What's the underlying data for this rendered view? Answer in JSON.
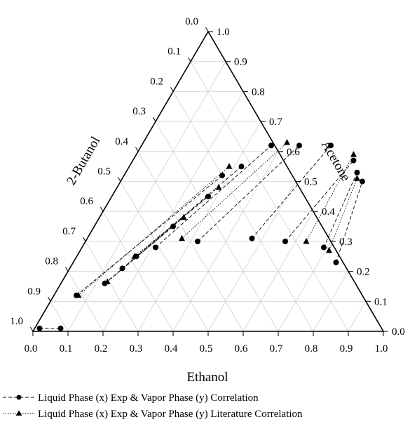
{
  "chart_data": {
    "type": "ternary",
    "axes": {
      "bottom": {
        "label": "Ethanol",
        "ticks": [
          "0.0",
          "0.1",
          "0.2",
          "0.3",
          "0.4",
          "0.5",
          "0.6",
          "0.7",
          "0.8",
          "0.9",
          "1.0"
        ]
      },
      "right": {
        "label": "Acetone",
        "ticks": [
          "0.0",
          "0.1",
          "0.2",
          "0.3",
          "0.4",
          "0.5",
          "0.6",
          "0.7",
          "0.8",
          "0.9",
          "1.0"
        ]
      },
      "left": {
        "label": "2-Butanol",
        "ticks": [
          "0.0",
          "0.1",
          "0.2",
          "0.3",
          "0.4",
          "0.5",
          "0.6",
          "0.7",
          "0.8",
          "0.9",
          "1.0"
        ]
      }
    },
    "grid": true,
    "legend_position": "bottom",
    "series": [
      {
        "name": "Liquid Phase (x) Exp & Vapor Phase (y) Correlation",
        "marker": "circle",
        "linestyle": "dashed",
        "tie_lines": [
          [
            {
              "ethanol": 0.014,
              "acetone": 0.01
            },
            {
              "ethanol": 0.074,
              "acetone": 0.01
            }
          ],
          [
            {
              "ethanol": 0.064,
              "acetone": 0.12
            },
            {
              "ethanol": 0.28,
              "acetone": 0.52
            }
          ],
          [
            {
              "ethanol": 0.125,
              "acetone": 0.16
            },
            {
              "ethanol": 0.225,
              "acetone": 0.35
            }
          ],
          [
            {
              "ethanol": 0.15,
              "acetone": 0.21
            },
            {
              "ethanol": 0.275,
              "acetone": 0.45
            }
          ],
          [
            {
              "ethanol": 0.17,
              "acetone": 0.25
            },
            {
              "ethanol": 0.32,
              "acetone": 0.55
            }
          ],
          [
            {
              "ethanol": 0.21,
              "acetone": 0.28
            },
            {
              "ethanol": 0.37,
              "acetone": 0.62
            }
          ],
          [
            {
              "ethanol": 0.32,
              "acetone": 0.3
            },
            {
              "ethanol": 0.45,
              "acetone": 0.62
            }
          ],
          [
            {
              "ethanol": 0.47,
              "acetone": 0.31
            },
            {
              "ethanol": 0.54,
              "acetone": 0.62
            }
          ],
          [
            {
              "ethanol": 0.57,
              "acetone": 0.3
            },
            {
              "ethanol": 0.63,
              "acetone": 0.57
            }
          ],
          [
            {
              "ethanol": 0.69,
              "acetone": 0.28
            },
            {
              "ethanol": 0.66,
              "acetone": 0.53
            }
          ],
          [
            {
              "ethanol": 0.75,
              "acetone": 0.23
            },
            {
              "ethanol": 0.69,
              "acetone": 0.5
            }
          ]
        ]
      },
      {
        "name": "Liquid Phase (x) Exp & Vapor Phase (y) Literature Correlation",
        "marker": "triangle",
        "linestyle": "dotted",
        "tie_lines": [
          [
            {
              "ethanol": 0.07,
              "acetone": 0.12
            },
            {
              "ethanol": 0.285,
              "acetone": 0.55
            }
          ],
          [
            {
              "ethanol": 0.13,
              "acetone": 0.165
            },
            {
              "ethanol": 0.24,
              "acetone": 0.38
            }
          ],
          [
            {
              "ethanol": 0.165,
              "acetone": 0.25
            },
            {
              "ethanol": 0.29,
              "acetone": 0.48
            }
          ],
          [
            {
              "ethanol": 0.27,
              "acetone": 0.31
            },
            {
              "ethanol": 0.41,
              "acetone": 0.63
            }
          ],
          [
            {
              "ethanol": 0.63,
              "acetone": 0.3
            },
            {
              "ethanol": 0.62,
              "acetone": 0.59
            }
          ],
          [
            {
              "ethanol": 0.71,
              "acetone": 0.27
            },
            {
              "ethanol": 0.67,
              "acetone": 0.51
            }
          ]
        ]
      }
    ]
  }
}
